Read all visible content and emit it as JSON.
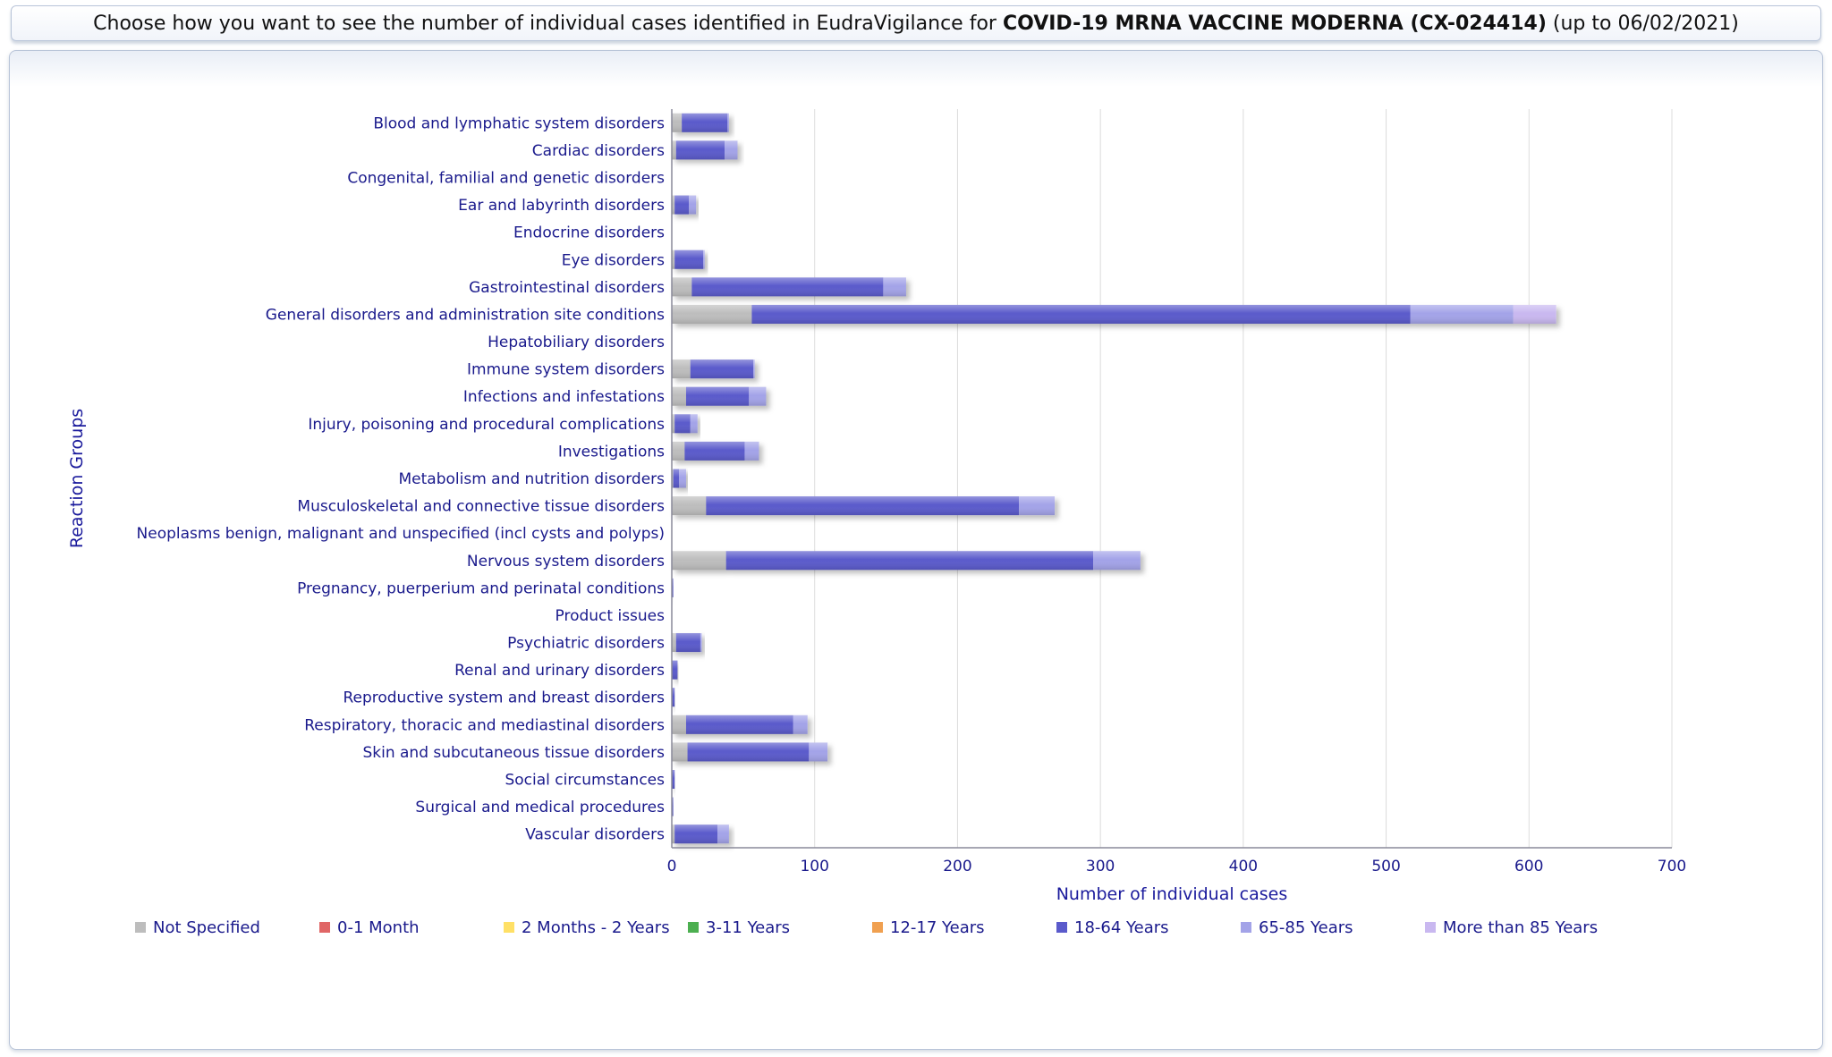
{
  "header": {
    "prefix": "Choose how you want to see the number of individual cases identified in EudraVigilance for ",
    "product": "COVID-19 MRNA VACCINE MODERNA (CX-024414)",
    "suffix": " (up to 06/02/2021)"
  },
  "chart_data": {
    "type": "bar",
    "orientation": "horizontal",
    "stacked": true,
    "xlabel": "Number of individual cases",
    "ylabel": "Reaction Groups",
    "xlim": [
      0,
      700
    ],
    "xticks": [
      0,
      100,
      200,
      300,
      400,
      500,
      600,
      700
    ],
    "grid": true,
    "legend_position": "bottom",
    "categories": [
      "Blood and lymphatic system disorders",
      "Cardiac disorders",
      "Congenital, familial and genetic disorders",
      "Ear and labyrinth disorders",
      "Endocrine disorders",
      "Eye disorders",
      "Gastrointestinal disorders",
      "General disorders and administration site conditions",
      "Hepatobiliary disorders",
      "Immune system disorders",
      "Infections and infestations",
      "Injury, poisoning and procedural complications",
      "Investigations",
      "Metabolism and nutrition disorders",
      "Musculoskeletal and connective tissue disorders",
      "Neoplasms benign, malignant and unspecified (incl cysts and polyps)",
      "Nervous system disorders",
      "Pregnancy, puerperium and perinatal conditions",
      "Product issues",
      "Psychiatric disorders",
      "Renal and urinary disorders",
      "Reproductive system and breast disorders",
      "Respiratory, thoracic and mediastinal disorders",
      "Skin and subcutaneous tissue disorders",
      "Social circumstances",
      "Surgical and medical procedures",
      "Vascular disorders"
    ],
    "series": [
      {
        "name": "Not Specified",
        "color": "#bdbdbd",
        "values": [
          7,
          3,
          0,
          2,
          0,
          2,
          14,
          56,
          0,
          13,
          10,
          2,
          9,
          1,
          24,
          0,
          38,
          0,
          0,
          3,
          0,
          0,
          10,
          11,
          0,
          0,
          2
        ]
      },
      {
        "name": "0-1 Month",
        "color": "#e06666",
        "values": [
          0,
          0,
          0,
          0,
          0,
          0,
          0,
          0,
          0,
          0,
          0,
          0,
          0,
          0,
          0,
          0,
          0,
          0,
          0,
          0,
          0,
          0,
          0,
          0,
          0,
          0,
          0
        ]
      },
      {
        "name": "2 Months - 2 Years",
        "color": "#ffe066",
        "values": [
          0,
          0,
          0,
          0,
          0,
          0,
          0,
          0,
          0,
          0,
          0,
          0,
          0,
          0,
          0,
          0,
          0,
          0,
          0,
          0,
          0,
          0,
          0,
          0,
          0,
          0,
          0
        ]
      },
      {
        "name": "3-11 Years",
        "color": "#4caf50",
        "values": [
          0,
          0,
          0,
          0,
          0,
          0,
          0,
          0,
          0,
          0,
          0,
          0,
          0,
          0,
          0,
          0,
          0,
          0,
          0,
          0,
          0,
          0,
          0,
          0,
          0,
          0,
          0
        ]
      },
      {
        "name": "12-17 Years",
        "color": "#f0a050",
        "values": [
          0,
          0,
          0,
          0,
          0,
          0,
          0,
          0,
          0,
          0,
          0,
          0,
          0,
          0,
          0,
          0,
          0,
          0,
          0,
          0,
          0,
          0,
          0,
          0,
          0,
          0,
          0
        ]
      },
      {
        "name": "18-64 Years",
        "color": "#5a5acb",
        "values": [
          32,
          34,
          0,
          10,
          0,
          20,
          134,
          461,
          0,
          44,
          44,
          11,
          42,
          4,
          219,
          0,
          257,
          1,
          0,
          17,
          4,
          2,
          75,
          85,
          2,
          1,
          30
        ]
      },
      {
        "name": "65-85 Years",
        "color": "#a3a3e8",
        "values": [
          1,
          9,
          0,
          5,
          0,
          1,
          16,
          72,
          0,
          1,
          12,
          5,
          10,
          5,
          25,
          0,
          33,
          0,
          0,
          1,
          0,
          0,
          10,
          13,
          0,
          0,
          8
        ]
      },
      {
        "name": "More than 85 Years",
        "color": "#c9b8f0",
        "values": [
          0,
          0,
          0,
          0,
          0,
          0,
          0,
          30,
          0,
          0,
          0,
          0,
          0,
          0,
          0,
          0,
          0,
          0,
          0,
          0,
          0,
          0,
          0,
          0,
          0,
          0,
          0
        ]
      }
    ]
  }
}
